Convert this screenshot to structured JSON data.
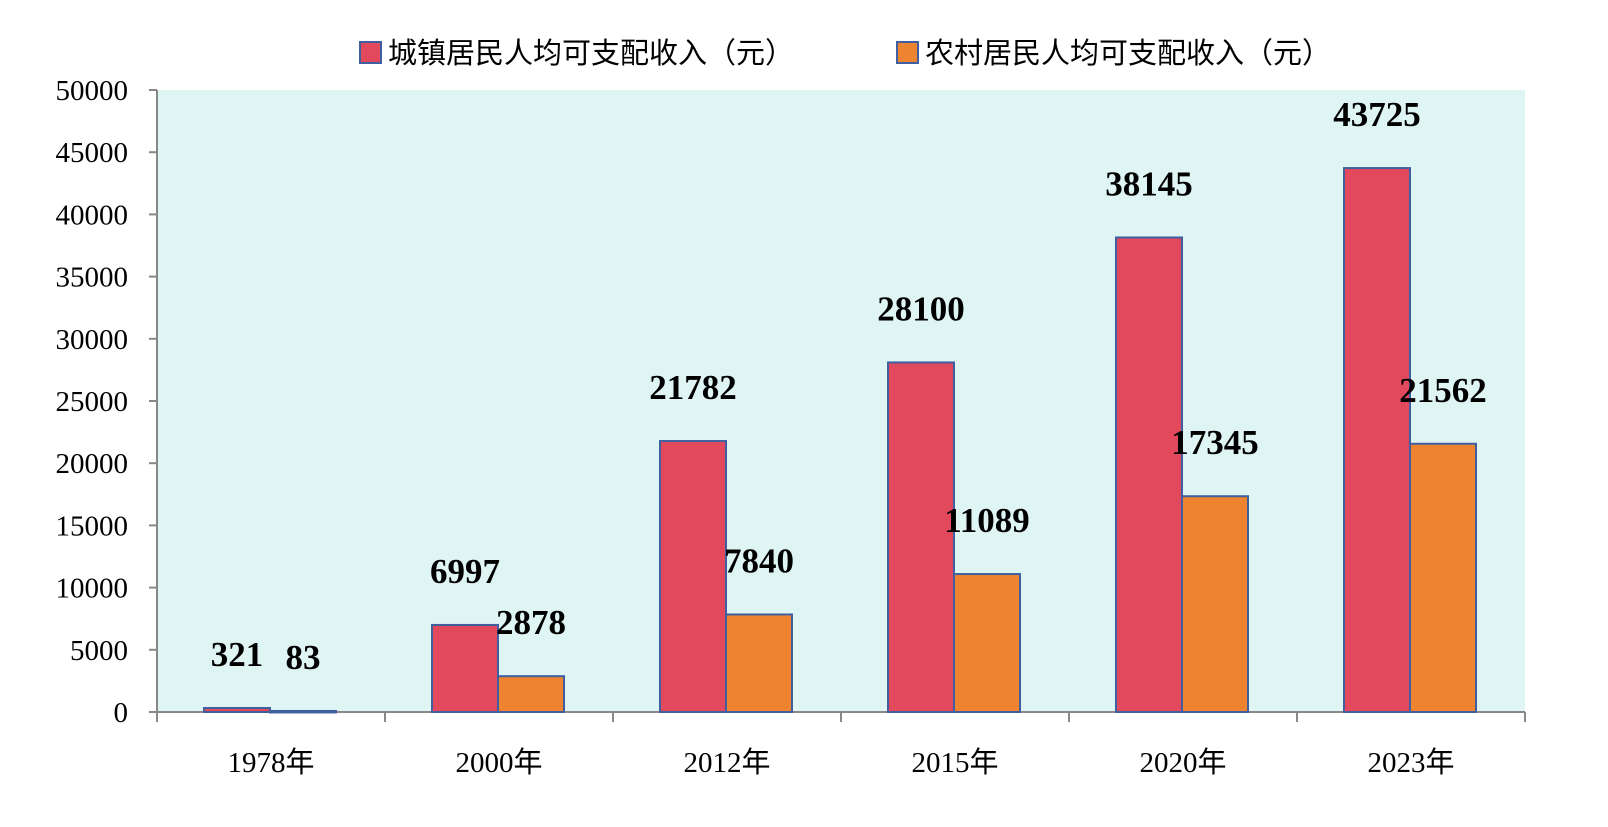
{
  "chart_data": {
    "type": "bar",
    "title": "",
    "xlabel": "",
    "ylabel": "",
    "categories": [
      "1978年",
      "2000年",
      "2012年",
      "2015年",
      "2020年",
      "2023年"
    ],
    "series": [
      {
        "name": "城镇居民人均可支配收入（元）",
        "color": "#e2495c",
        "values": [
          321,
          6997,
          21782,
          28100,
          38145,
          43725
        ]
      },
      {
        "name": "农村居民人均可支配收入（元）",
        "color": "#ee8430",
        "values": [
          83,
          2878,
          7840,
          11089,
          17345,
          21562
        ]
      }
    ],
    "ylim": [
      0,
      50000
    ],
    "yticks": [
      0,
      5000,
      10000,
      15000,
      20000,
      25000,
      30000,
      35000,
      40000,
      45000,
      50000
    ],
    "grid": false,
    "legend": "top",
    "plot_background": "#dff5f3",
    "bar_border": "#3f5fa0"
  }
}
